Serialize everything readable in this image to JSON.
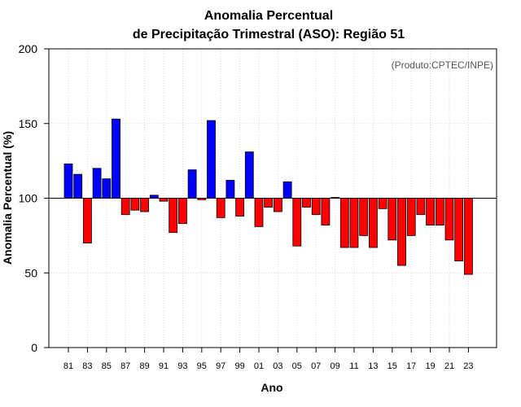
{
  "chart_data": {
    "type": "bar",
    "title_line1": "Anomalia Percentual",
    "title_line2": "de Precipitação Trimestral (ASO): Região 51",
    "xlabel": "Ano",
    "ylabel": "Anomalia Percentual (%)",
    "credit": "(Produto:CPTEC/INPE)",
    "baseline": 100,
    "ylim": [
      0,
      200
    ],
    "yticks": [
      0,
      50,
      100,
      150,
      200
    ],
    "grid": true,
    "colors": {
      "above": "#0000ff",
      "below": "#ff0000",
      "edge": "#000000"
    },
    "years": [
      "81",
      "82",
      "83",
      "84",
      "85",
      "86",
      "87",
      "88",
      "89",
      "90",
      "91",
      "92",
      "93",
      "94",
      "95",
      "96",
      "97",
      "98",
      "99",
      "00",
      "01",
      "02",
      "03",
      "04",
      "05",
      "06",
      "07",
      "08",
      "09",
      "10",
      "11",
      "12",
      "13",
      "14",
      "15",
      "16",
      "17",
      "18",
      "19",
      "20",
      "21",
      "22",
      "23"
    ],
    "xtick_labels": [
      "81",
      "83",
      "85",
      "87",
      "89",
      "91",
      "93",
      "95",
      "97",
      "99",
      "01",
      "03",
      "05",
      "07",
      "09",
      "11",
      "13",
      "15",
      "17",
      "19",
      "21",
      "23"
    ],
    "values": [
      123,
      116,
      70,
      120,
      113,
      153,
      89,
      92,
      91,
      102,
      98,
      77,
      83,
      119,
      99,
      152,
      87,
      112,
      88,
      131,
      81,
      94,
      91,
      111,
      68,
      94,
      89,
      82,
      100.5,
      67,
      67,
      75,
      67,
      93,
      72,
      55,
      75,
      89,
      82,
      82,
      72,
      58,
      49
    ]
  }
}
